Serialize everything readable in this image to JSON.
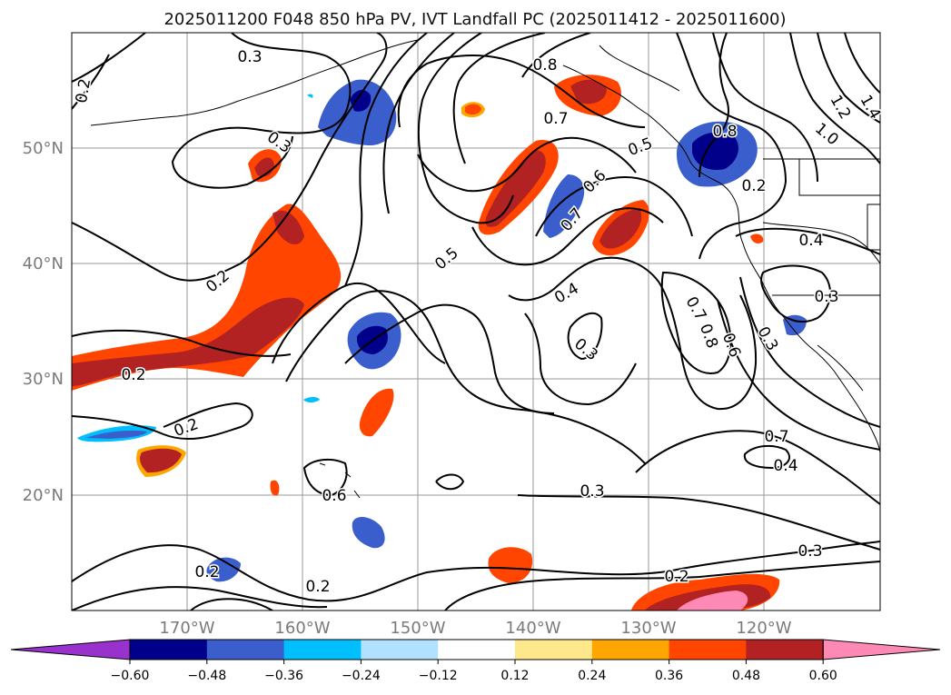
{
  "title": "2025011200 F048 850 hPa PV, IVT Landfall PC (2025011412 - 2025011600)",
  "map": {
    "lat_labels": [
      "50°N",
      "40°N",
      "30°N",
      "20°N"
    ],
    "lon_labels": [
      "170°W",
      "160°W",
      "150°W",
      "140°W",
      "130°W",
      "120°W"
    ],
    "contour_labels": [
      "0.3",
      "0.2",
      "0.8",
      "0.7",
      "0.5",
      "0.6",
      "0.3",
      "0.8",
      "1.2",
      "1.4",
      "1.0",
      "0.7",
      "0.4",
      "0.5",
      "0.2",
      "0.4",
      "0.3",
      "0.3",
      "0.7",
      "0.8",
      "0.6",
      "0.3",
      "0.2",
      "0.2",
      "0.6",
      "0.7",
      "0.4",
      "0.3",
      "0.3",
      "0.2",
      "0.2",
      "0.2",
      "0.2"
    ]
  },
  "colorbar": {
    "ticks": [
      "−0.60",
      "−0.48",
      "−0.36",
      "−0.24",
      "−0.12",
      "0.12",
      "0.24",
      "0.36",
      "0.48",
      "0.60"
    ],
    "colors": [
      "#9932CC",
      "#00008B",
      "#3A5FCD",
      "#00BFFF",
      "#B0E2FF",
      "#FFFFFF",
      "#FFE88C",
      "#FFA500",
      "#FF4500",
      "#B22222",
      "#FF89B5"
    ]
  }
}
